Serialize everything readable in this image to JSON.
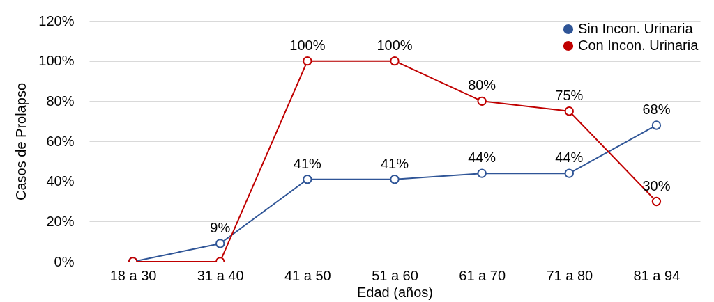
{
  "chart_data": {
    "type": "line",
    "xlabel": "Edad (años)",
    "ylabel": "Casos de Prolapso",
    "categories": [
      "18 a 30",
      "31 a 40",
      "41 a 50",
      "51 a 60",
      "61 a 70",
      "71 a 80",
      "81 a 94"
    ],
    "series": [
      {
        "name": "Sin Incon. Urinaria",
        "color": "#2f5597",
        "values": [
          0,
          9,
          41,
          41,
          44,
          44,
          68
        ],
        "value_labels": [
          null,
          "9%",
          "41%",
          "41%",
          "44%",
          "44%",
          "68%"
        ]
      },
      {
        "name": "Con Incon. Urinaria",
        "color": "#c00000",
        "values": [
          0,
          0,
          100,
          100,
          80,
          75,
          30
        ],
        "value_labels": [
          null,
          null,
          "100%",
          "100%",
          "80%",
          "75%",
          "30%"
        ]
      }
    ],
    "ylim": [
      0,
      120
    ],
    "yticks": [
      {
        "value": 0,
        "label": "0%"
      },
      {
        "value": 20,
        "label": "20%"
      },
      {
        "value": 40,
        "label": "40%"
      },
      {
        "value": 60,
        "label": "60%"
      },
      {
        "value": 80,
        "label": "80%"
      },
      {
        "value": 100,
        "label": "100%"
      },
      {
        "value": 120,
        "label": "120%"
      }
    ],
    "grid": "y",
    "legend": "top right",
    "marker": "circle"
  }
}
